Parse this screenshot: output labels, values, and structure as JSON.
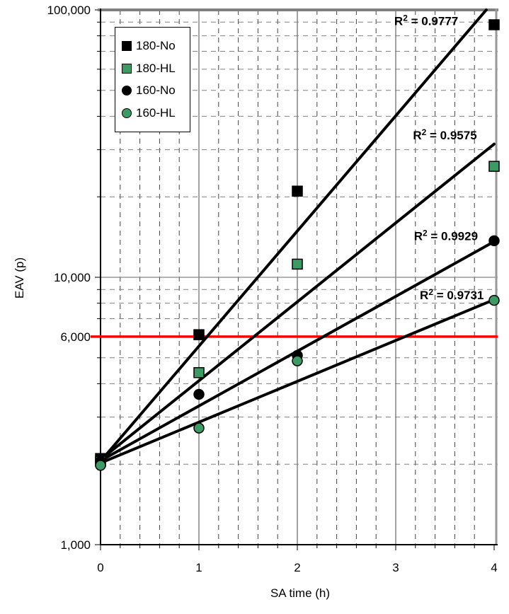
{
  "chart_data": {
    "type": "scatter",
    "title": "",
    "xlabel": "SA time (h)",
    "ylabel": "EAV (p)",
    "xlim": [
      0,
      4
    ],
    "ylim": [
      1000,
      100000
    ],
    "y_scale": "log",
    "grid": {
      "x_minor_step": 0.2,
      "x_major_step": 1,
      "y_minor": "log-decade 2-9 steps",
      "style": "dashed minors, solid majors"
    },
    "x_ticks": [
      {
        "value": 0,
        "label": "0"
      },
      {
        "value": 1,
        "label": "1"
      },
      {
        "value": 2,
        "label": "2"
      },
      {
        "value": 3,
        "label": "3"
      },
      {
        "value": 4,
        "label": "4"
      }
    ],
    "y_ticks": [
      {
        "value": 1000,
        "label": "1,000"
      },
      {
        "value": 6000,
        "label": "6,000"
      },
      {
        "value": 10000,
        "label": "10,000"
      },
      {
        "value": 100000,
        "label": "100,000"
      }
    ],
    "reference_line": {
      "value": 6000,
      "color": "#ff0000"
    },
    "legend": {
      "position": "upper-left"
    },
    "colors": {
      "black_series": "#000000",
      "green_series": "#3c9b64",
      "marker_outline": "#000000",
      "trendline": "#000000"
    },
    "series": [
      {
        "name": "180-No",
        "marker": "square",
        "color": "#000000",
        "x": [
          0,
          1,
          2,
          4
        ],
        "y": [
          2100,
          6100,
          21000,
          88000
        ],
        "r_squared": "0.9777",
        "trend": {
          "x": [
            0,
            3.92
          ],
          "y": [
            2050,
            100000
          ]
        }
      },
      {
        "name": "180-HL",
        "marker": "square",
        "color": "#3c9b64",
        "x": [
          0,
          1,
          2,
          4
        ],
        "y": [
          2050,
          4400,
          11200,
          26000
        ],
        "r_squared": "0.9575",
        "trend": {
          "x": [
            0,
            4
          ],
          "y": [
            2080,
            31500
          ]
        }
      },
      {
        "name": "160-No",
        "marker": "circle",
        "color": "#000000",
        "x": [
          0,
          1,
          2,
          4
        ],
        "y": [
          2050,
          3650,
          5100,
          13700
        ],
        "r_squared": "0.9929",
        "trend": {
          "x": [
            0,
            4
          ],
          "y": [
            2060,
            13600
          ]
        }
      },
      {
        "name": "160-HL",
        "marker": "circle",
        "color": "#3c9b64",
        "x": [
          0,
          1,
          2,
          4
        ],
        "y": [
          1980,
          2730,
          4870,
          8200
        ],
        "r_squared": "0.9731",
        "trend": {
          "x": [
            0,
            4
          ],
          "y": [
            2020,
            8250
          ]
        }
      }
    ],
    "annotations": [
      {
        "text": "R² = 0.9777",
        "x": 3.31,
        "value": 91000
      },
      {
        "text": "R² = 0.9575",
        "x": 3.5,
        "value": 34000
      },
      {
        "text": "R² = 0.9929",
        "x": 3.51,
        "value": 14300
      },
      {
        "text": "R² = 0.9731",
        "x": 3.57,
        "value": 8600
      }
    ]
  }
}
